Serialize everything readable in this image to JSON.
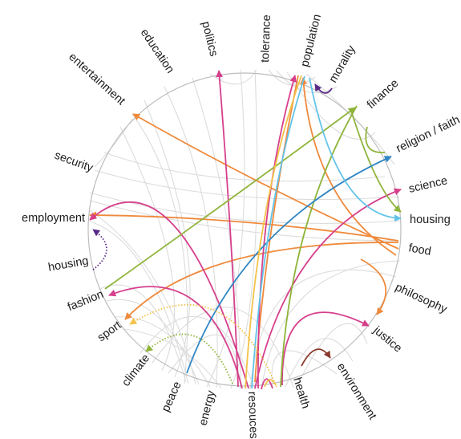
{
  "labels": {
    "entertainment": "entertainment",
    "education": "education",
    "politics": "politics",
    "tolerance": "tolerance",
    "population": "population",
    "morality": "morality",
    "finance": "finance",
    "religion": "religion / faith",
    "science": "science",
    "housing_right": "housing",
    "food": "food",
    "philosophy": "philosophy",
    "justice": "justice",
    "environment": "environment",
    "health": "health",
    "resources": "resouces",
    "energy": "energy",
    "peace": "peace",
    "climate": "climate",
    "sport": "sport",
    "fashion": "fashion",
    "housing_left": "housing",
    "employment": "employment",
    "security": "security"
  },
  "colors": {
    "orange": "#ef8a3c",
    "magenta": "#d63f8c",
    "green": "#8fb43a",
    "blue": "#2f86c4",
    "cyan": "#63c3e8",
    "yellow": "#f3c24a",
    "purple": "#5a2b86",
    "brown": "#8a3b2c",
    "grey": "#dcdcdc",
    "circle": "#bdbdbd"
  }
}
